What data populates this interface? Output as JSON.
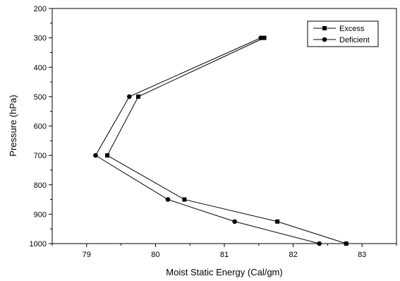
{
  "chart_data": {
    "type": "line",
    "title": "",
    "xlabel": "Moist Static Energy (Cal/gm)",
    "ylabel": "Pressure (hPa)",
    "xlim": [
      78.5,
      83.5
    ],
    "ylim": [
      1000,
      200
    ],
    "y_inverted": true,
    "x_ticks": [
      79,
      80,
      81,
      82,
      83
    ],
    "y_ticks": [
      200,
      300,
      400,
      500,
      600,
      700,
      800,
      900,
      1000
    ],
    "grid": false,
    "legend_position": "top-right",
    "series": [
      {
        "name": "Excess",
        "marker": "square",
        "color": "#000000",
        "points": [
          {
            "x": 81.58,
            "y": 300
          },
          {
            "x": 79.75,
            "y": 500
          },
          {
            "x": 79.3,
            "y": 700
          },
          {
            "x": 80.42,
            "y": 850
          },
          {
            "x": 81.77,
            "y": 925
          },
          {
            "x": 82.77,
            "y": 1000
          }
        ]
      },
      {
        "name": "Deficient",
        "marker": "circle",
        "color": "#000000",
        "points": [
          {
            "x": 81.53,
            "y": 300
          },
          {
            "x": 79.62,
            "y": 500
          },
          {
            "x": 79.13,
            "y": 700
          },
          {
            "x": 80.18,
            "y": 850
          },
          {
            "x": 81.15,
            "y": 925
          },
          {
            "x": 82.38,
            "y": 1000
          }
        ]
      }
    ]
  }
}
